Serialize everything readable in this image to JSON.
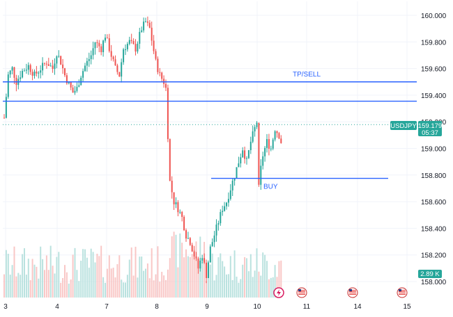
{
  "chart_data": {
    "type": "candlestick",
    "symbol": "USDJPY",
    "colors": {
      "up": "#26a69a",
      "down": "#ef5350",
      "vol_up": "#b2dfdb",
      "vol_down": "#f8c1c0",
      "line": "#2962ff",
      "price_badge": "#26a69a",
      "volume_badge": "#26a69a"
    },
    "y_axis": {
      "side": "right",
      "ylim": [
        157.9,
        160.07
      ],
      "ticks": [
        "160.000",
        "159.800",
        "159.600",
        "159.400",
        "159.200",
        "159.000",
        "158.800",
        "158.600",
        "158.400",
        "158.200",
        "158.000"
      ]
    },
    "x_axis": {
      "ticks": [
        "3",
        "4",
        "7",
        "8",
        "9",
        "10",
        "11",
        "14",
        "15"
      ]
    },
    "price_badge": {
      "symbol": "USDJPY",
      "price": "159.179",
      "countdown": "05:37"
    },
    "volume_badge": {
      "value": "2.89 K"
    },
    "current_price": 159.179,
    "horizontal_lines": [
      {
        "price": 159.5,
        "label": "TP/SELL"
      },
      {
        "price": 159.355
      },
      {
        "price": 158.775,
        "label": "BUY"
      }
    ],
    "calendar_events": [
      {
        "day": "10",
        "icon": "lightning-icon"
      },
      {
        "day": "11",
        "icon": "us-flag-icon"
      },
      {
        "day": "14",
        "icon": "us-flag-icon"
      },
      {
        "day": "15",
        "icon": "us-flag-icon"
      }
    ],
    "price_path": [
      [
        0,
        159.23
      ],
      [
        2,
        159.55
      ],
      [
        4,
        159.6
      ],
      [
        6,
        159.5
      ],
      [
        9,
        159.58
      ],
      [
        12,
        159.62
      ],
      [
        15,
        159.55
      ],
      [
        18,
        159.6
      ],
      [
        21,
        159.65
      ],
      [
        24,
        159.6
      ],
      [
        26,
        159.72
      ],
      [
        28,
        159.65
      ],
      [
        30,
        159.55
      ],
      [
        32,
        159.48
      ],
      [
        34,
        159.42
      ],
      [
        36,
        159.45
      ],
      [
        38,
        159.55
      ],
      [
        40,
        159.62
      ],
      [
        43,
        159.7
      ],
      [
        45,
        159.8
      ],
      [
        48,
        159.75
      ],
      [
        50,
        159.85
      ],
      [
        53,
        159.7
      ],
      [
        55,
        159.6
      ],
      [
        57,
        159.55
      ],
      [
        59,
        159.75
      ],
      [
        62,
        159.8
      ],
      [
        65,
        159.75
      ],
      [
        68,
        159.9
      ],
      [
        70,
        159.95
      ],
      [
        72,
        159.9
      ],
      [
        75,
        159.65
      ],
      [
        77,
        159.55
      ],
      [
        79,
        159.5
      ],
      [
        80,
        159.45
      ],
      [
        82,
        158.75
      ],
      [
        84,
        158.6
      ],
      [
        86,
        158.55
      ],
      [
        88,
        158.48
      ],
      [
        90,
        158.35
      ],
      [
        92,
        158.3
      ],
      [
        94,
        158.2
      ],
      [
        96,
        158.1
      ],
      [
        98,
        158.2
      ],
      [
        100,
        158.05
      ],
      [
        102,
        158.25
      ],
      [
        104,
        158.35
      ],
      [
        106,
        158.45
      ],
      [
        108,
        158.55
      ],
      [
        110,
        158.6
      ],
      [
        112,
        158.7
      ],
      [
        114,
        158.8
      ],
      [
        116,
        158.9
      ],
      [
        118,
        159.0
      ],
      [
        120,
        158.9
      ],
      [
        122,
        159.05
      ],
      [
        124,
        159.15
      ],
      [
        125,
        159.2
      ],
      [
        126,
        158.7
      ],
      [
        127,
        158.85
      ],
      [
        128,
        158.95
      ],
      [
        130,
        159.05
      ],
      [
        132,
        159.0
      ],
      [
        134,
        159.15
      ],
      [
        136,
        159.1
      ],
      [
        137,
        159.05
      ]
    ]
  }
}
